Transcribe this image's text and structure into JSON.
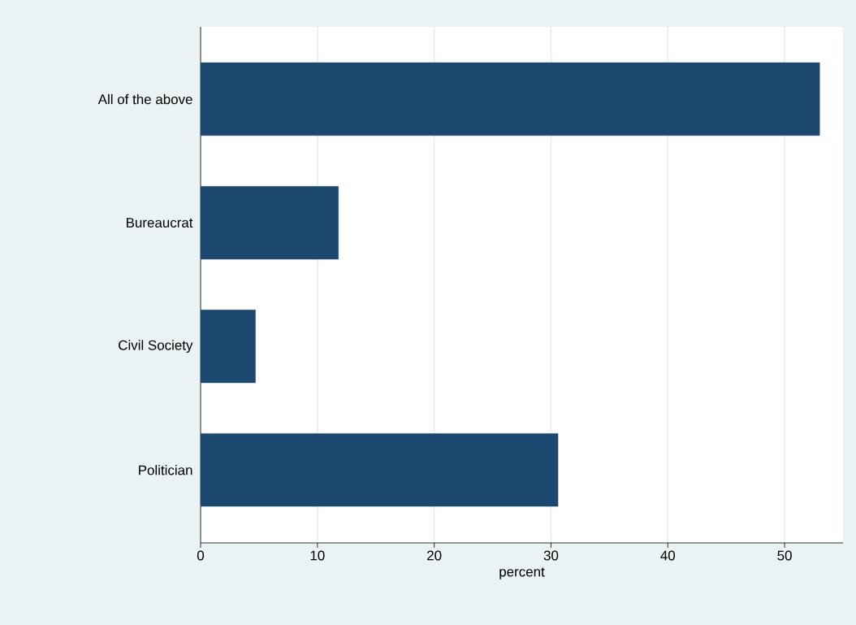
{
  "chart_data": {
    "type": "bar",
    "orientation": "horizontal",
    "xlabel": "percent",
    "categories": [
      "All of the above",
      "Bureaucrat",
      "Civil Society",
      "Politician"
    ],
    "values": [
      53.0,
      11.8,
      4.7,
      30.6
    ],
    "color": "#1c4870",
    "xlim": [
      0,
      55
    ],
    "xticks": [
      0,
      10,
      20,
      30,
      40,
      50
    ],
    "grid": "x"
  }
}
